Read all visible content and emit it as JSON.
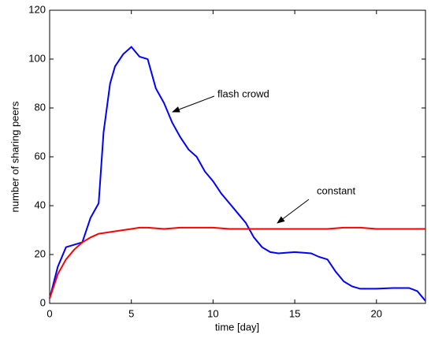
{
  "chart_data": {
    "type": "line",
    "x_label": "time [day]",
    "y_label": "number of sharing peers",
    "xlim": [
      0,
      23
    ],
    "ylim": [
      0,
      120
    ],
    "xticks": [
      0,
      5,
      10,
      15,
      20
    ],
    "yticks": [
      0,
      20,
      40,
      60,
      80,
      100,
      120
    ],
    "annotations": [
      "flash crowd",
      "constant"
    ],
    "series": [
      {
        "color": "#0000ff",
        "x": [
          0,
          0.5,
          1,
          1.5,
          2,
          2.5,
          3,
          3.3,
          3.7,
          4,
          4.5,
          5,
          5.5,
          6,
          6.5,
          7,
          7.5,
          8,
          8.5,
          9,
          9.5,
          10,
          10.5,
          11,
          11.5,
          12,
          12.5,
          13,
          13.5,
          14,
          15,
          16,
          16.5,
          17,
          17.5,
          18,
          18.5,
          19,
          20,
          21,
          22,
          22.5,
          23
        ],
        "values": [
          2,
          15,
          23,
          24,
          25,
          35,
          41,
          70,
          90,
          97,
          102,
          105,
          101,
          100,
          88,
          82,
          74,
          68,
          63,
          60,
          54,
          50,
          45,
          41,
          37,
          33,
          27,
          23,
          21,
          20.5,
          21,
          20.5,
          19,
          18,
          13,
          9,
          7,
          6,
          6,
          6.3,
          6.3,
          5,
          1
        ]
      },
      {
        "color": "#ff0000",
        "x": [
          0,
          0.5,
          1,
          1.5,
          2,
          2.5,
          3,
          4,
          5,
          5.5,
          6,
          7,
          8,
          9,
          10,
          11,
          12,
          13,
          14,
          15,
          16,
          17,
          18,
          19,
          20,
          21,
          22,
          23
        ],
        "values": [
          2,
          12,
          18,
          22,
          25,
          27,
          28.5,
          29.5,
          30.5,
          31,
          31,
          30.5,
          31,
          31,
          31,
          30.5,
          30.5,
          30.5,
          30.5,
          30.5,
          30.5,
          30.5,
          31,
          31,
          30.5,
          30.5,
          30.5,
          30.5
        ]
      }
    ]
  }
}
